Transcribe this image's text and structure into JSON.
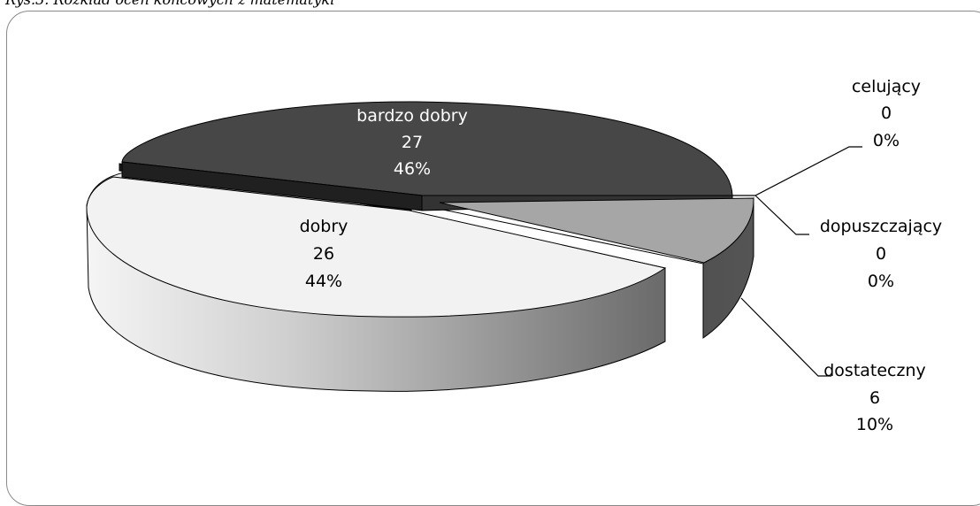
{
  "caption": "Rys.3. Rozkład ocen końcowych z matematyki",
  "chart_data": {
    "type": "pie",
    "style": "3d-exploded",
    "legend": "none",
    "slices": [
      {
        "label": "bardzo dobry",
        "value": 27,
        "percent": "46%",
        "color": "#474747"
      },
      {
        "label": "dobry",
        "value": 26,
        "percent": "44%",
        "color": "#f2f2f2"
      },
      {
        "label": "dostateczny",
        "value": 6,
        "percent": "10%",
        "color": "#a6a6a6"
      },
      {
        "label": "dopuszczający",
        "value": 0,
        "percent": "0%",
        "color": "#595959"
      },
      {
        "label": "celujący",
        "value": 0,
        "percent": "0%",
        "color": "#262626"
      }
    ]
  }
}
